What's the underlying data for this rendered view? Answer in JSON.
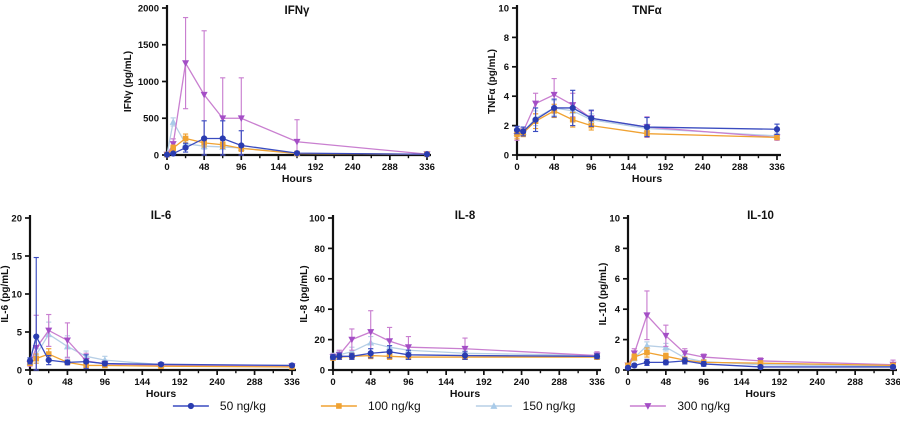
{
  "figure": {
    "xlabel": "Hours"
  },
  "legend": {
    "items": [
      {
        "label": "50 ng/kg",
        "marker": "circle",
        "color": "#2a3cb0",
        "line_color": "#3a4cc0"
      },
      {
        "label": "100 ng/kg",
        "marker": "square",
        "color": "#f0a232",
        "line_color": "#f0a232"
      },
      {
        "label": "150 ng/kg",
        "marker": "triangle-up",
        "color": "#a9cbe9",
        "line_color": "#b7cfe6"
      },
      {
        "label": "300 ng/kg",
        "marker": "triangle-down",
        "color": "#a44ec6",
        "line_color": "#c97fd0"
      }
    ]
  },
  "chart_data": [
    {
      "type": "line",
      "title": "IFNγ",
      "xlabel": "Hours",
      "ylabel": "IFNγ (pg/mL)",
      "x": [
        0,
        8,
        24,
        48,
        72,
        96,
        168,
        336
      ],
      "xlim": [
        0,
        336
      ],
      "ylim": [
        0,
        2000
      ],
      "xticks": [
        0,
        48,
        96,
        144,
        192,
        240,
        288,
        336
      ],
      "yticks": [
        0,
        500,
        1000,
        1500,
        2000
      ],
      "series": [
        {
          "name": "50 ng/kg",
          "values": [
            5,
            20,
            100,
            225,
            225,
            130,
            25,
            10
          ],
          "err": [
            3,
            10,
            60,
            240,
            240,
            200,
            15,
            5
          ]
        },
        {
          "name": "100 ng/kg",
          "values": [
            5,
            95,
            225,
            165,
            140,
            90,
            20,
            10
          ],
          "err": [
            3,
            40,
            60,
            55,
            50,
            40,
            12,
            5
          ]
        },
        {
          "name": "150 ng/kg",
          "values": [
            5,
            450,
            155,
            120,
            110,
            95,
            20,
            10
          ],
          "err": [
            3,
            55,
            45,
            40,
            35,
            30,
            12,
            5
          ]
        },
        {
          "name": "300 ng/kg",
          "values": [
            5,
            150,
            1250,
            820,
            500,
            500,
            180,
            12
          ],
          "err": [
            3,
            70,
            620,
            870,
            550,
            550,
            300,
            6
          ]
        }
      ]
    },
    {
      "type": "line",
      "title": "TNFα",
      "xlabel": "Hours",
      "ylabel": "TNFα (pg/mL)",
      "x": [
        0,
        8,
        24,
        48,
        72,
        96,
        168,
        336
      ],
      "xlim": [
        0,
        336
      ],
      "ylim": [
        0,
        10
      ],
      "xticks": [
        0,
        48,
        96,
        144,
        192,
        240,
        288,
        336
      ],
      "yticks": [
        0,
        2,
        4,
        6,
        8,
        10
      ],
      "series": [
        {
          "name": "50 ng/kg",
          "values": [
            1.7,
            1.6,
            2.4,
            3.2,
            3.2,
            2.5,
            1.9,
            1.75
          ],
          "err": [
            0.25,
            0.3,
            0.8,
            0.6,
            1.2,
            0.55,
            0.65,
            0.35
          ]
        },
        {
          "name": "100 ng/kg",
          "values": [
            1.4,
            1.5,
            2.3,
            3.0,
            2.4,
            2.0,
            1.45,
            1.2
          ],
          "err": [
            0.3,
            0.25,
            0.5,
            0.45,
            0.5,
            0.3,
            0.2,
            0.15
          ]
        },
        {
          "name": "150 ng/kg",
          "values": [
            1.5,
            1.55,
            2.5,
            3.2,
            3.0,
            2.4,
            1.8,
            1.3
          ],
          "err": [
            0.2,
            0.25,
            0.5,
            0.5,
            0.5,
            0.4,
            0.3,
            0.2
          ]
        },
        {
          "name": "300 ng/kg",
          "values": [
            1.3,
            1.6,
            3.5,
            4.1,
            3.4,
            2.5,
            1.9,
            1.2
          ],
          "err": [
            0.3,
            0.3,
            0.7,
            1.1,
            0.8,
            0.5,
            0.7,
            0.2
          ]
        }
      ]
    },
    {
      "type": "line",
      "title": "IL-6",
      "xlabel": "Hours",
      "ylabel": "IL-6 (pg/mL)",
      "x": [
        0,
        8,
        24,
        48,
        72,
        96,
        168,
        336
      ],
      "xlim": [
        0,
        336
      ],
      "ylim": [
        0,
        20
      ],
      "xticks": [
        0,
        48,
        96,
        144,
        192,
        240,
        288,
        336
      ],
      "yticks": [
        0,
        5,
        10,
        15,
        20
      ],
      "series": [
        {
          "name": "50 ng/kg",
          "values": [
            1.2,
            4.4,
            1.3,
            1.0,
            1.1,
            0.85,
            0.75,
            0.6
          ],
          "err": [
            0.4,
            10.4,
            0.6,
            0.3,
            0.9,
            0.3,
            0.2,
            0.1
          ]
        },
        {
          "name": "100 ng/kg",
          "values": [
            0.9,
            1.5,
            2.1,
            1.0,
            0.6,
            0.6,
            0.5,
            0.4
          ],
          "err": [
            0.3,
            0.6,
            0.7,
            0.3,
            0.2,
            0.15,
            0.1,
            0.1
          ]
        },
        {
          "name": "150 ng/kg",
          "values": [
            1.0,
            2.0,
            4.7,
            3.1,
            1.8,
            1.3,
            0.7,
            0.5
          ],
          "err": [
            0.3,
            0.8,
            1.6,
            1.4,
            0.7,
            0.5,
            0.2,
            0.1
          ]
        },
        {
          "name": "300 ng/kg",
          "values": [
            0.8,
            2.9,
            5.2,
            3.9,
            1.2,
            0.8,
            0.6,
            0.5
          ],
          "err": [
            0.3,
            4.3,
            2.1,
            2.3,
            1.0,
            0.3,
            0.2,
            0.1
          ]
        }
      ]
    },
    {
      "type": "line",
      "title": "IL-8",
      "xlabel": "Hours",
      "ylabel": "IL-8 (pg/mL)",
      "x": [
        0,
        8,
        24,
        48,
        72,
        96,
        168,
        336
      ],
      "xlim": [
        0,
        336
      ],
      "ylim": [
        0,
        100
      ],
      "xticks": [
        0,
        48,
        96,
        144,
        192,
        240,
        288,
        336
      ],
      "yticks": [
        0,
        20,
        40,
        60,
        80,
        100
      ],
      "series": [
        {
          "name": "50 ng/kg",
          "values": [
            8.5,
            9,
            9,
            11,
            12,
            10,
            9.5,
            9
          ],
          "err": [
            1.5,
            2,
            2,
            3,
            4,
            3,
            2.5,
            1.5
          ]
        },
        {
          "name": "100 ng/kg",
          "values": [
            8,
            8.5,
            9,
            9.5,
            9,
            8.5,
            8.5,
            8.5
          ],
          "err": [
            1.5,
            1.5,
            2,
            2,
            2,
            1.5,
            1.5,
            1.5
          ]
        },
        {
          "name": "150 ng/kg",
          "values": [
            9,
            10,
            12,
            18,
            15,
            13,
            11,
            9.5
          ],
          "err": [
            2,
            2,
            3,
            4,
            4,
            3,
            2,
            2
          ]
        },
        {
          "name": "300 ng/kg",
          "values": [
            8.5,
            10,
            20,
            25,
            19,
            15,
            14,
            9.5
          ],
          "err": [
            2,
            3,
            7,
            14,
            9,
            7,
            7,
            2.5
          ]
        }
      ]
    },
    {
      "type": "line",
      "title": "IL-10",
      "xlabel": "Hours",
      "ylabel": "IL-10 (pg/mL)",
      "x": [
        0,
        8,
        24,
        48,
        72,
        96,
        168,
        336
      ],
      "xlim": [
        0,
        336
      ],
      "ylim": [
        0,
        10
      ],
      "xticks": [
        0,
        48,
        96,
        144,
        192,
        240,
        288,
        336
      ],
      "yticks": [
        0,
        2,
        4,
        6,
        8,
        10
      ],
      "series": [
        {
          "name": "50 ng/kg",
          "values": [
            0.15,
            0.3,
            0.5,
            0.5,
            0.6,
            0.4,
            0.2,
            0.2
          ],
          "err": [
            0.08,
            0.1,
            0.2,
            0.15,
            0.2,
            0.15,
            0.1,
            0.08
          ]
        },
        {
          "name": "100 ng/kg",
          "values": [
            0.3,
            0.85,
            1.15,
            0.9,
            0.65,
            0.5,
            0.45,
            0.3
          ],
          "err": [
            0.1,
            0.2,
            0.3,
            0.2,
            0.2,
            0.15,
            0.15,
            0.1
          ]
        },
        {
          "name": "150 ng/kg",
          "values": [
            0.25,
            0.8,
            1.6,
            1.5,
            0.8,
            0.55,
            0.35,
            0.25
          ],
          "err": [
            0.1,
            0.2,
            0.25,
            0.25,
            0.2,
            0.15,
            0.1,
            0.1
          ]
        },
        {
          "name": "300 ng/kg",
          "values": [
            0.3,
            1.1,
            3.6,
            2.25,
            1.1,
            0.85,
            0.6,
            0.35
          ],
          "err": [
            0.1,
            0.3,
            1.6,
            0.7,
            0.3,
            0.2,
            0.2,
            0.3
          ]
        }
      ]
    }
  ]
}
